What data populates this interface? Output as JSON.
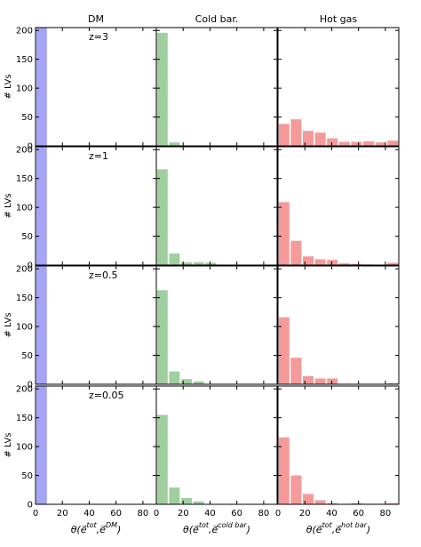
{
  "chart_data": {
    "type": "bar",
    "columns": [
      {
        "title": "DM",
        "color": "#a5a5f5",
        "xlabel_main": "θ(e⃗",
        "xlabel_sup": "tot",
        "xlabel_mid": ",e⃗",
        "xlabel_sup2": "DM",
        "xlabel_end": ")"
      },
      {
        "title": "Cold bar.",
        "color": "#9fcf9f",
        "xlabel_main": "θ(e⃗",
        "xlabel_sup": "tot",
        "xlabel_mid": ",e⃗",
        "xlabel_sup2": "cold bar",
        "xlabel_end": ")"
      },
      {
        "title": "Hot gas",
        "color": "#f59a9a",
        "xlabel_main": "θ(e⃗",
        "xlabel_sup": "tot",
        "xlabel_mid": ",e⃗",
        "xlabel_sup2": "hot bar",
        "xlabel_end": ")"
      }
    ],
    "rows": [
      {
        "label": "z=3"
      },
      {
        "label": "z=1"
      },
      {
        "label": "z=0.5"
      },
      {
        "label": "z=0.05"
      }
    ],
    "ylabel": "# LVs",
    "xlim": [
      0,
      90
    ],
    "ylim": [
      0,
      205
    ],
    "xticks": [
      0,
      20,
      40,
      60,
      80
    ],
    "yticks": [
      0,
      50,
      100,
      150,
      200
    ],
    "bin_edges": [
      0,
      9,
      18,
      27,
      36,
      45,
      54,
      63,
      72,
      81,
      90
    ],
    "panels": [
      [
        [
          205,
          0,
          0,
          0,
          0,
          0,
          0,
          0,
          0,
          0
        ],
        [
          196,
          6,
          0,
          0,
          0,
          0,
          0,
          0,
          0,
          0
        ],
        [
          38,
          46,
          26,
          23,
          13,
          7,
          7,
          8,
          6,
          9
        ]
      ],
      [
        [
          205,
          0,
          0,
          0,
          0,
          0,
          0,
          0,
          0,
          0
        ],
        [
          166,
          20,
          5,
          5,
          4,
          0,
          0,
          0,
          0,
          0
        ],
        [
          109,
          42,
          15,
          10,
          9,
          3,
          2,
          1,
          0,
          4
        ]
      ],
      [
        [
          205,
          0,
          0,
          0,
          0,
          0,
          0,
          0,
          0,
          0
        ],
        [
          163,
          22,
          9,
          5,
          0,
          0,
          0,
          0,
          0,
          0
        ],
        [
          116,
          46,
          14,
          10,
          10,
          0,
          0,
          0,
          0,
          2
        ]
      ],
      [
        [
          205,
          0,
          0,
          0,
          0,
          0,
          0,
          0,
          0,
          0
        ],
        [
          155,
          29,
          11,
          5,
          0,
          0,
          0,
          0,
          0,
          0
        ],
        [
          116,
          50,
          18,
          7,
          2,
          0,
          2,
          1,
          1,
          2
        ]
      ]
    ]
  }
}
